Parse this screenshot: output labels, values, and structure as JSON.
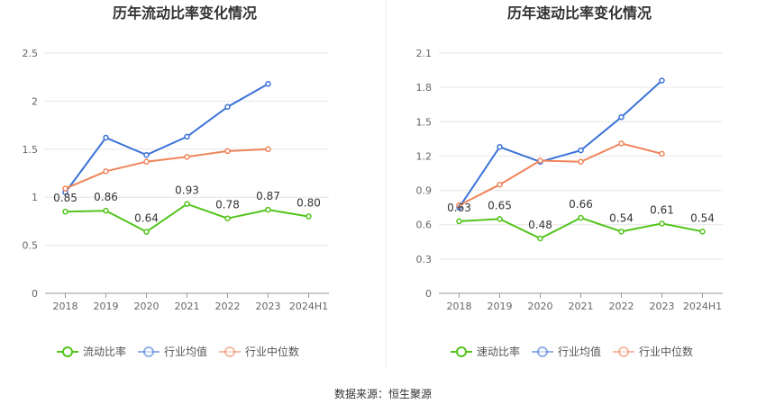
{
  "source": "数据来源：恒生聚源",
  "chart_data": [
    {
      "type": "line",
      "title": "历年流动比率变化情况",
      "categories": [
        "2018",
        "2019",
        "2020",
        "2021",
        "2022",
        "2023",
        "2024H1"
      ],
      "ylim": [
        0,
        2.5
      ],
      "yticks": [
        "0",
        "0.5",
        "1",
        "1.5",
        "2",
        "2.5"
      ],
      "ytick_values": [
        0,
        0.5,
        1,
        1.5,
        2,
        2.5
      ],
      "grid": true,
      "legend_position": "bottom",
      "series": [
        {
          "name": "流动比率",
          "color": "#52c41a",
          "values": [
            0.85,
            0.86,
            0.64,
            0.93,
            0.78,
            0.87,
            0.8
          ],
          "labels": [
            "0.85",
            "0.86",
            "0.64",
            "0.93",
            "0.78",
            "0.87",
            "0.80"
          ]
        },
        {
          "name": "行业均值",
          "color": "#3b73d9",
          "values": [
            1.05,
            1.62,
            1.44,
            1.63,
            1.94,
            2.18,
            null
          ]
        },
        {
          "name": "行业中位数",
          "color": "#f0845a",
          "values": [
            1.09,
            1.27,
            1.37,
            1.42,
            1.48,
            1.5,
            null
          ]
        }
      ]
    },
    {
      "type": "line",
      "title": "历年速动比率变化情况",
      "categories": [
        "2018",
        "2019",
        "2020",
        "2021",
        "2022",
        "2023",
        "2024H1"
      ],
      "ylim": [
        0,
        2.1
      ],
      "yticks": [
        "0",
        "0.3",
        "0.6",
        "0.9",
        "1.2",
        "1.5",
        "1.8",
        "2.1"
      ],
      "ytick_values": [
        0,
        0.3,
        0.6,
        0.9,
        1.2,
        1.5,
        1.8,
        2.1
      ],
      "grid": true,
      "legend_position": "bottom",
      "series": [
        {
          "name": "速动比率",
          "color": "#52c41a",
          "values": [
            0.63,
            0.65,
            0.48,
            0.66,
            0.54,
            0.61,
            0.54
          ],
          "labels": [
            "0.63",
            "0.65",
            "0.48",
            "0.66",
            "0.54",
            "0.61",
            "0.54"
          ]
        },
        {
          "name": "行业均值",
          "color": "#3b73d9",
          "values": [
            0.75,
            1.28,
            1.15,
            1.25,
            1.54,
            1.86,
            null
          ]
        },
        {
          "name": "行业中位数",
          "color": "#f0845a",
          "values": [
            0.77,
            0.95,
            1.16,
            1.15,
            1.31,
            1.22,
            null
          ]
        }
      ]
    }
  ]
}
